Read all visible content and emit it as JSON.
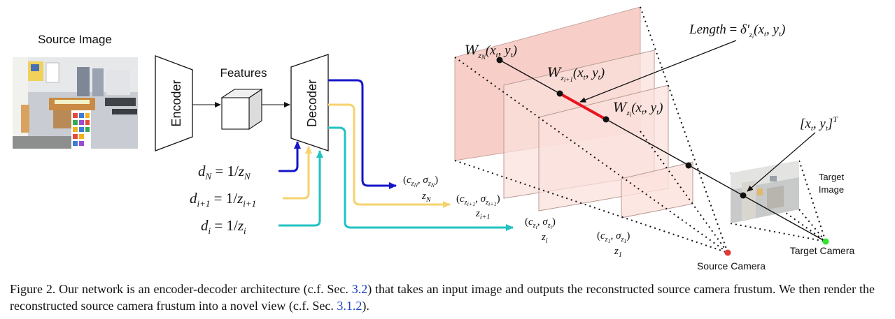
{
  "source_image": {
    "label": "Source Image"
  },
  "network": {
    "encoder_label": "Encoder",
    "features_label": "Features",
    "decoder_label": "Decoder"
  },
  "depths": {
    "d_N": {
      "var": "d",
      "sub": "N",
      "rhs_num": "1/",
      "rhs_var": "z",
      "rhs_sub": "N"
    },
    "d_i1": {
      "var": "d",
      "sub": "i+1",
      "rhs_num": "1/",
      "rhs_var": "z",
      "rhs_sub": "i+1"
    },
    "d_i": {
      "var": "d",
      "sub": "i",
      "rhs_num": "1/",
      "rhs_var": "z",
      "rhs_sub": "i"
    }
  },
  "planes": {
    "N": {
      "c": "c",
      "sigma": "σ",
      "sub": "z",
      "subsub": "N",
      "z": "z",
      "zsub": "N"
    },
    "i1": {
      "c": "c",
      "sigma": "σ",
      "sub": "z",
      "subsub": "i+1",
      "z": "z",
      "zsub": "i+1"
    },
    "i": {
      "c": "c",
      "sigma": "σ",
      "sub": "z",
      "subsub": "i",
      "z": "z",
      "zsub": "i"
    },
    "1": {
      "c": "c",
      "sigma": "σ",
      "sub": "z",
      "subsub": "1",
      "z": "z",
      "zsub": "1"
    }
  },
  "annotations": {
    "W_N": {
      "W": "W",
      "sub": "z",
      "subsub": "N",
      "args": "(x",
      "t": "t",
      "mid": ", y",
      "end": ")"
    },
    "W_i1": {
      "W": "W",
      "sub": "z",
      "subsub": "i+1",
      "args": "(x",
      "t": "t",
      "mid": ", y",
      "end": ")"
    },
    "W_i": {
      "W": "W",
      "sub": "z",
      "subsub": "i",
      "args": "(x",
      "t": "t",
      "mid": ", y",
      "end": ")"
    },
    "length": {
      "lhs": "Length",
      "eq": " = ",
      "delta": "δ′",
      "sub": "z",
      "subsub": "i",
      "args": "(x",
      "t": "t",
      "mid": ", y",
      "end": ")"
    },
    "point": {
      "text": "[x",
      "t": "t",
      "mid": ", y",
      "end": "]",
      "sup": "T"
    }
  },
  "cameras": {
    "target_image_line1": "Target",
    "target_image_line2": "Image",
    "target_camera": "Target Camera",
    "source_camera": "Source Camera"
  },
  "colors": {
    "blue": "#1515c8",
    "yellow": "#f5d36e",
    "teal": "#22c2c2",
    "red_segment": "#e8141e",
    "plane_fill": "#f7cfc8",
    "source_camera_dot": "#e53935",
    "target_camera_dot": "#2ee62e"
  },
  "caption": {
    "part1": "Figure 2. Our network is an encoder-decoder architecture (c.f. Sec. ",
    "ref1": "3.2",
    "part2": ") that takes an input image and outputs the reconstructed source camera frustum. We then render the reconstructed source camera frustum into a novel view (c.f. Sec. ",
    "ref2": "3.1.2",
    "part3": ")."
  }
}
